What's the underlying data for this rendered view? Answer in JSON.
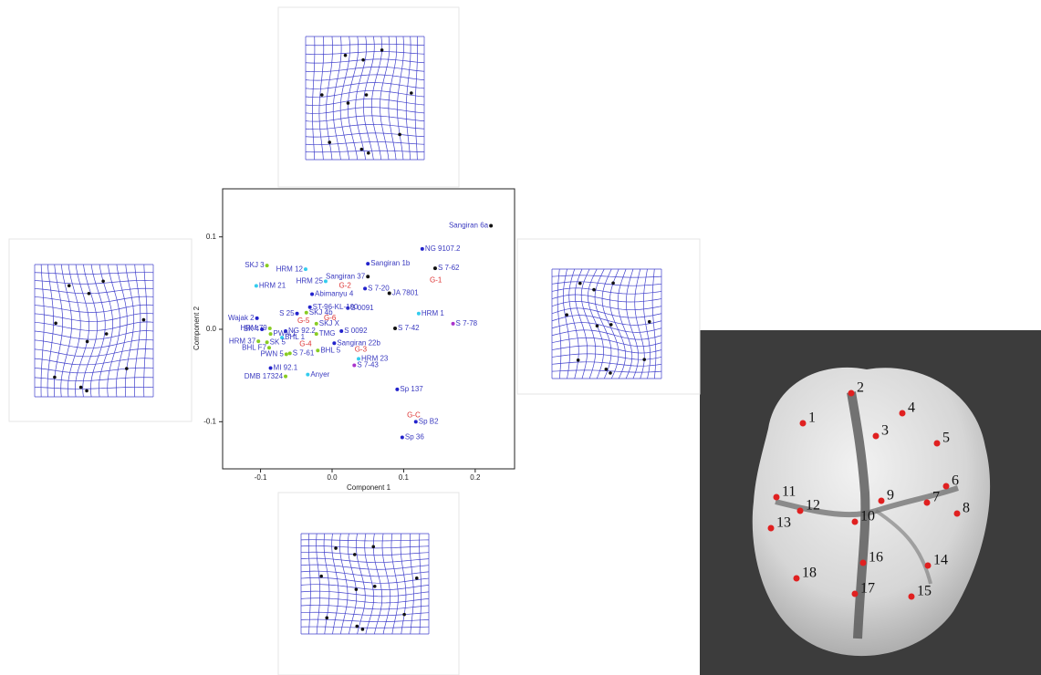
{
  "chart_data": {
    "type": "scatter",
    "x_label": "Component 1",
    "y_label": "Component 2",
    "xlim": [
      -0.153,
      0.255
    ],
    "ylim": [
      -0.151,
      0.152
    ],
    "xticks": [
      -0.1,
      {
        "value": 0,
        "label": "0.0"
      },
      0.1,
      0.2
    ],
    "yticks": [
      0.1,
      {
        "value": 0,
        "label": "0.0"
      },
      -0.1
    ],
    "label_color": "#3a3ac0",
    "points": [
      {
        "label": "Sangiran 6a",
        "x": 0.222,
        "y": 0.112,
        "color": "#111111"
      },
      {
        "label": "NG 9107.2",
        "x": 0.126,
        "y": 0.087,
        "color": "#2222cc"
      },
      {
        "label": "S 7-62",
        "x": 0.144,
        "y": 0.066,
        "color": "#111111"
      },
      {
        "label": "G-1",
        "x": 0.145,
        "y": 0.053,
        "color": "#dd3333",
        "text_only": true
      },
      {
        "label": "Sangiran 1b",
        "x": 0.05,
        "y": 0.071,
        "color": "#2222cc"
      },
      {
        "label": "Sangiran 37",
        "x": 0.05,
        "y": 0.057,
        "color": "#111111"
      },
      {
        "label": "SKJ 3",
        "x": -0.091,
        "y": 0.069,
        "color": "#88cc22"
      },
      {
        "label": "HRM 12",
        "x": -0.037,
        "y": 0.065,
        "color": "#33ccee"
      },
      {
        "label": "HRM 25",
        "x": -0.009,
        "y": 0.052,
        "color": "#33ccee"
      },
      {
        "label": "G-2",
        "x": 0.018,
        "y": 0.047,
        "color": "#dd3333",
        "text_only": true
      },
      {
        "label": "HRM 21",
        "x": -0.106,
        "y": 0.047,
        "color": "#33ccee"
      },
      {
        "label": "S 7-20",
        "x": 0.046,
        "y": 0.044,
        "color": "#2222cc"
      },
      {
        "label": "JA 7801",
        "x": 0.08,
        "y": 0.039,
        "color": "#111111"
      },
      {
        "label": "Abimanyu 4",
        "x": -0.028,
        "y": 0.038,
        "color": "#2222cc"
      },
      {
        "label": "S 0091",
        "x": 0.022,
        "y": 0.023,
        "color": "#2222cc"
      },
      {
        "label": "ST-96-KL-100",
        "x": -0.031,
        "y": 0.024,
        "color": "#2222cc"
      },
      {
        "label": "S 25",
        "x": -0.049,
        "y": 0.017,
        "color": "#2222cc"
      },
      {
        "label": "SKJ 4b",
        "x": -0.036,
        "y": 0.018,
        "color": "#88cc22"
      },
      {
        "label": "HRM 1",
        "x": 0.121,
        "y": 0.017,
        "color": "#33ccee"
      },
      {
        "label": "S 7-78",
        "x": 0.169,
        "y": 0.006,
        "color": "#aa33cc"
      },
      {
        "label": "G-5",
        "x": -0.04,
        "y": 0.009,
        "color": "#dd3333",
        "text_only": true
      },
      {
        "label": "G-6",
        "x": -0.003,
        "y": 0.012,
        "color": "#dd3333",
        "text_only": true
      },
      {
        "label": "Wajak 2",
        "x": -0.105,
        "y": 0.012,
        "color": "#2222cc"
      },
      {
        "label": "SKJ X",
        "x": -0.022,
        "y": 0.006,
        "color": "#88cc22"
      },
      {
        "label": "HRM 79",
        "x": -0.087,
        "y": 0.001,
        "color": "#88cc22"
      },
      {
        "label": "S 0092",
        "x": 0.013,
        "y": -0.002,
        "color": "#2222cc"
      },
      {
        "label": "S 7-42",
        "x": 0.088,
        "y": 0.001,
        "color": "#111111"
      },
      {
        "label": "NG 92.2",
        "x": -0.065,
        "y": -0.002,
        "color": "#2222cc"
      },
      {
        "label": "SK 4",
        "x": -0.098,
        "y": 0.0,
        "color": "#2222cc"
      },
      {
        "label": "PWN 1",
        "x": -0.086,
        "y": -0.005,
        "color": "#88cc22"
      },
      {
        "label": "TMG",
        "x": -0.022,
        "y": -0.005,
        "color": "#88cc22"
      },
      {
        "label": "BHL 1",
        "x": -0.07,
        "y": -0.009,
        "color": "#33ccee"
      },
      {
        "label": "HRM 37",
        "x": -0.103,
        "y": -0.013,
        "color": "#88cc22"
      },
      {
        "label": "SK 5",
        "x": -0.091,
        "y": -0.014,
        "color": "#88cc22"
      },
      {
        "label": "G-4",
        "x": -0.037,
        "y": -0.016,
        "color": "#dd3333",
        "text_only": true
      },
      {
        "label": "Sangiran 22b",
        "x": 0.003,
        "y": -0.015,
        "color": "#2222cc"
      },
      {
        "label": "BHL F7",
        "x": -0.088,
        "y": -0.02,
        "color": "#88cc22"
      },
      {
        "label": "BHL 5",
        "x": -0.02,
        "y": -0.023,
        "color": "#88cc22"
      },
      {
        "label": "G-3",
        "x": 0.04,
        "y": -0.022,
        "color": "#dd3333",
        "text_only": true
      },
      {
        "label": "PWN 5",
        "x": -0.064,
        "y": -0.027,
        "color": "#88cc22"
      },
      {
        "label": "S 7-61",
        "x": -0.059,
        "y": -0.026,
        "color": "#88cc22"
      },
      {
        "label": "HRM 23",
        "x": 0.037,
        "y": -0.032,
        "color": "#33ccee"
      },
      {
        "label": "S 7-43",
        "x": 0.031,
        "y": -0.039,
        "color": "#aa33cc"
      },
      {
        "label": "MI 92.1",
        "x": -0.086,
        "y": -0.042,
        "color": "#2222cc"
      },
      {
        "label": "Anyer",
        "x": -0.034,
        "y": -0.049,
        "color": "#33ccee"
      },
      {
        "label": "DMB 17324",
        "x": -0.065,
        "y": -0.051,
        "color": "#88cc22"
      },
      {
        "label": "Sp 137",
        "x": 0.091,
        "y": -0.065,
        "color": "#2222cc"
      },
      {
        "label": "G-C",
        "x": 0.114,
        "y": -0.093,
        "color": "#dd3333",
        "text_only": true
      },
      {
        "label": "Sp B2",
        "x": 0.117,
        "y": -0.1,
        "color": "#2222cc"
      },
      {
        "label": "Sp 36",
        "x": 0.098,
        "y": -0.117,
        "color": "#2222cc"
      }
    ]
  },
  "landmarks": [
    "1",
    "2",
    "3",
    "4",
    "5",
    "6",
    "7",
    "8",
    "9",
    "10",
    "11",
    "12",
    "13",
    "14",
    "15",
    "16",
    "17",
    "18"
  ]
}
